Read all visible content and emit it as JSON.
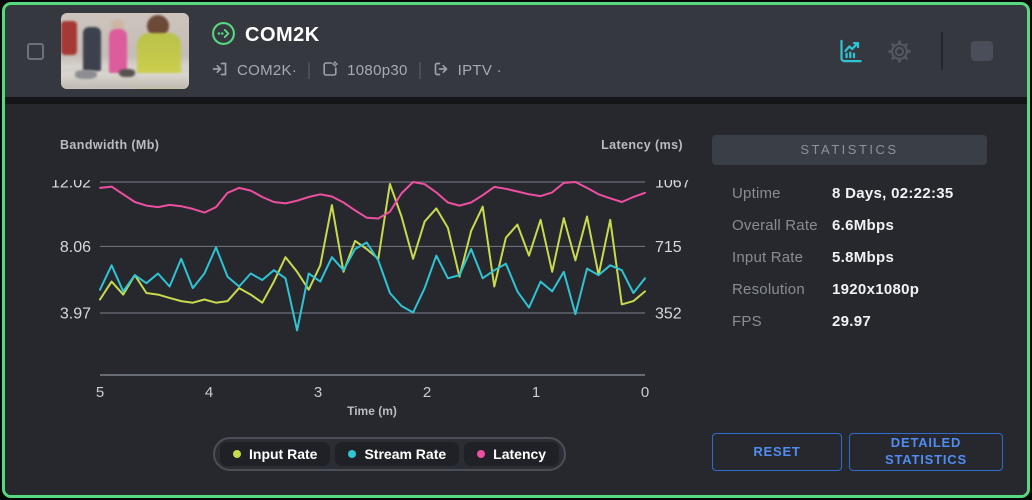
{
  "colors": {
    "accent_green": "#57d97f",
    "teal": "#2fc3d4",
    "button_blue": "#4f8df0",
    "series_input_rate": "#c8d94e",
    "series_stream_rate": "#2fc3d4",
    "series_latency": "#ee4fa0"
  },
  "header": {
    "title": "COM2K",
    "source_label": "COM2K·",
    "encoding_label": "1080p30",
    "output_label": "IPTV ·"
  },
  "stats": {
    "header": "STATISTICS",
    "rows": [
      {
        "label": "Uptime",
        "value": "8 Days, 02:22:35"
      },
      {
        "label": "Overall Rate",
        "value": "6.6Mbps"
      },
      {
        "label": "Input Rate",
        "value": "5.8Mbps"
      },
      {
        "label": "Resolution",
        "value": "1920x1080p"
      },
      {
        "label": "FPS",
        "value": "29.97"
      }
    ]
  },
  "buttons": {
    "reset": "RESET",
    "detailed": "DETAILED STATISTICS"
  },
  "legend": {
    "items": [
      {
        "label": "Input Rate",
        "color": "#c8d94e"
      },
      {
        "label": "Stream Rate",
        "color": "#2fc3d4"
      },
      {
        "label": "Latency",
        "color": "#ee4fa0"
      }
    ]
  },
  "chart_data": {
    "type": "line",
    "left_axis": {
      "label": "Bandwidth (Mb)",
      "ticks": [
        12.02,
        8.06,
        3.97
      ],
      "range": [
        0,
        12.02
      ]
    },
    "right_axis": {
      "label": "Latency (ms)",
      "ticks": [
        1067,
        715,
        352
      ],
      "range": [
        0,
        1067
      ]
    },
    "x_axis": {
      "label": "Time (m)",
      "ticks": [
        5,
        4,
        3,
        2,
        1,
        0
      ],
      "range": [
        5,
        0
      ]
    },
    "grid": true,
    "legend_position": "bottom",
    "series": [
      {
        "name": "Input Rate",
        "axis": "left",
        "color": "#c8d94e",
        "values": [
          4.8,
          5.9,
          5.1,
          6.3,
          5.2,
          5.1,
          4.9,
          4.7,
          4.6,
          4.8,
          4.6,
          4.7,
          5.5,
          5.1,
          4.6,
          5.9,
          7.4,
          6.5,
          5.4,
          6.9,
          10.6,
          6.5,
          8.4,
          7.9,
          7.3,
          11.9,
          9.9,
          7.3,
          9.6,
          10.4,
          9.2,
          6.2,
          9.0,
          10.5,
          5.6,
          8.6,
          9.4,
          7.5,
          9.7,
          6.5,
          9.8,
          7.2,
          9.9,
          6.3,
          9.7,
          4.5,
          4.7,
          5.3
        ]
      },
      {
        "name": "Stream Rate",
        "axis": "left",
        "color": "#2fc3d4",
        "values": [
          5.4,
          6.9,
          5.3,
          6.3,
          5.8,
          6.4,
          5.6,
          7.3,
          5.5,
          6.4,
          8.0,
          6.2,
          5.6,
          6.4,
          6.0,
          6.6,
          6.1,
          2.9,
          6.4,
          5.9,
          7.4,
          6.6,
          7.9,
          8.3,
          7.2,
          5.2,
          4.4,
          4.0,
          5.5,
          7.5,
          6.1,
          6.3,
          7.9,
          6.1,
          6.6,
          7.0,
          5.3,
          4.3,
          5.9,
          5.3,
          6.5,
          3.9,
          6.7,
          6.3,
          6.9,
          6.6,
          5.2,
          6.1
        ]
      },
      {
        "name": "Latency",
        "axis": "right",
        "color": "#ee4fa0",
        "values": [
          1035,
          1042,
          1000,
          958,
          938,
          930,
          942,
          935,
          920,
          900,
          930,
          1008,
          1035,
          1020,
          985,
          958,
          950,
          965,
          985,
          1000,
          988,
          955,
          912,
          872,
          868,
          905,
          1005,
          1067,
          1055,
          1010,
          955,
          938,
          955,
          995,
          1040,
          1030,
          1015,
          1000,
          990,
          1010,
          1062,
          1067,
          1035,
          1000,
          978,
          958,
          985,
          1008
        ]
      }
    ]
  }
}
